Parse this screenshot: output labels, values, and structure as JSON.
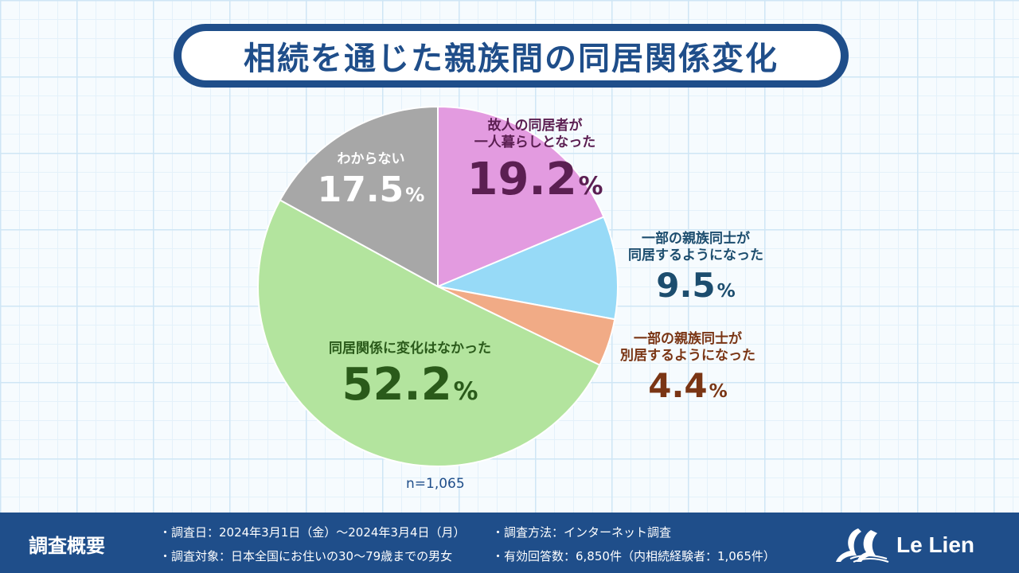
{
  "title": "相続を通じた親族間の同居関係変化",
  "chart_data": {
    "type": "pie",
    "title": "相続を通じた親族間の同居関係変化",
    "slices": [
      {
        "label": "故人の同居者が一人暮らしとなった",
        "label_line1": "故人の同居者が",
        "label_line2": "一人暮らしとなった",
        "value": 19.2,
        "value_text": "19.2",
        "color": "#e39be0",
        "text_color": "#5b1f52"
      },
      {
        "label": "一部の親族同士が同居するようになった",
        "label_line1": "一部の親族同士が",
        "label_line2": "同居するようになった",
        "value": 9.5,
        "value_text": "9.5",
        "color": "#97daf7",
        "text_color": "#1c4d6e"
      },
      {
        "label": "一部の親族同士が別居するようになった",
        "label_line1": "一部の親族同士が",
        "label_line2": "別居するようになった",
        "value": 4.4,
        "value_text": "4.4",
        "color": "#f1ab86",
        "text_color": "#7a3514"
      },
      {
        "label": "同居関係に変化はなかった",
        "label_line1": "同居関係に変化はなかった",
        "label_line2": "",
        "value": 52.2,
        "value_text": "52.2",
        "color": "#b3e49e",
        "text_color": "#2a5a1a"
      },
      {
        "label": "わからない",
        "label_line1": "わからない",
        "label_line2": "",
        "value": 17.5,
        "value_text": "17.5",
        "color": "#a7a7a7",
        "text_color": "#ffffff"
      }
    ],
    "unit": "%",
    "sample": "n=1,065"
  },
  "footer": {
    "title": "調査概要",
    "notes": {
      "date": "・調査日：2024年3月1日（金）～2024年3月4日（月）",
      "target": "・調査対象：日本全国にお住いの30～79歳までの男女",
      "method": "・調査方法：インターネット調査",
      "responses": "・有効回答数：6,850件（内相続経験者：1,065件）"
    },
    "brand": "Le Lien"
  }
}
